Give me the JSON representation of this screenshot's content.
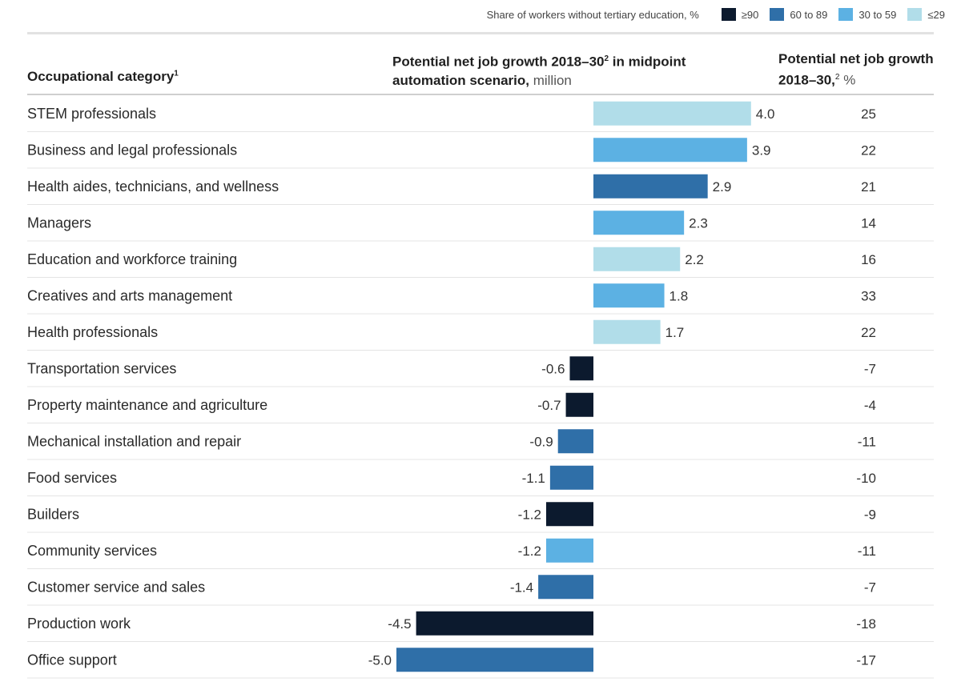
{
  "legend": {
    "title": "Share of workers without tertiary education, %",
    "items": [
      {
        "key": "ge90",
        "label": "≥90",
        "color": "#0c1a2e"
      },
      {
        "key": "60to89",
        "label": "60 to 89",
        "color": "#2f6fa8"
      },
      {
        "key": "30to59",
        "label": "30 to 59",
        "color": "#5cb1e3"
      },
      {
        "key": "le29",
        "label": "≤29",
        "color": "#b1dde9"
      }
    ]
  },
  "headers": {
    "occupational_category": "Occupational category",
    "occupational_category_note": "1",
    "growth_million_bold": "Potential net job growth 2018–30",
    "growth_million_note": "2",
    "growth_million_bold_tail": " in midpoint automation scenario,",
    "growth_million_unit": " million",
    "growth_pct_bold": "Potential net job growth 2018–30,",
    "growth_pct_note": "2",
    "growth_pct_unit": " %"
  },
  "chart_data": {
    "type": "bar",
    "orientation": "horizontal",
    "categories": [
      "STEM professionals",
      "Business and legal professionals",
      "Health aides, technicians, and wellness",
      "Managers",
      "Education and workforce training",
      "Creatives and arts management",
      "Health professionals",
      "Transportation services",
      "Property maintenance and agriculture",
      "Mechanical installation and repair",
      "Food services",
      "Builders",
      "Community services",
      "Customer service and sales",
      "Production work",
      "Office support"
    ],
    "values": [
      4.0,
      3.9,
      2.9,
      2.3,
      2.2,
      1.8,
      1.7,
      -0.6,
      -0.7,
      -0.9,
      -1.1,
      -1.2,
      -1.2,
      -1.4,
      -4.5,
      -5.0
    ],
    "value_labels": [
      "4.0",
      "3.9",
      "2.9",
      "2.3",
      "2.2",
      "1.8",
      "1.7",
      "-0.6",
      "-0.7",
      "-0.9",
      "-1.1",
      "-1.2",
      "-1.2",
      "-1.4",
      "-4.5",
      "-5.0"
    ],
    "pct_growth": [
      "25",
      "22",
      "21",
      "14",
      "16",
      "33",
      "22",
      "-7",
      "-4",
      "-11",
      "-10",
      "-9",
      "-11",
      "-7",
      "-18",
      "-17"
    ],
    "education_group": [
      "le29",
      "30to59",
      "60to89",
      "30to59",
      "le29",
      "30to59",
      "le29",
      "ge90",
      "ge90",
      "60to89",
      "60to89",
      "ge90",
      "30to59",
      "60to89",
      "ge90",
      "60to89"
    ],
    "xlim": [
      -5.0,
      4.0
    ],
    "grid": false
  }
}
